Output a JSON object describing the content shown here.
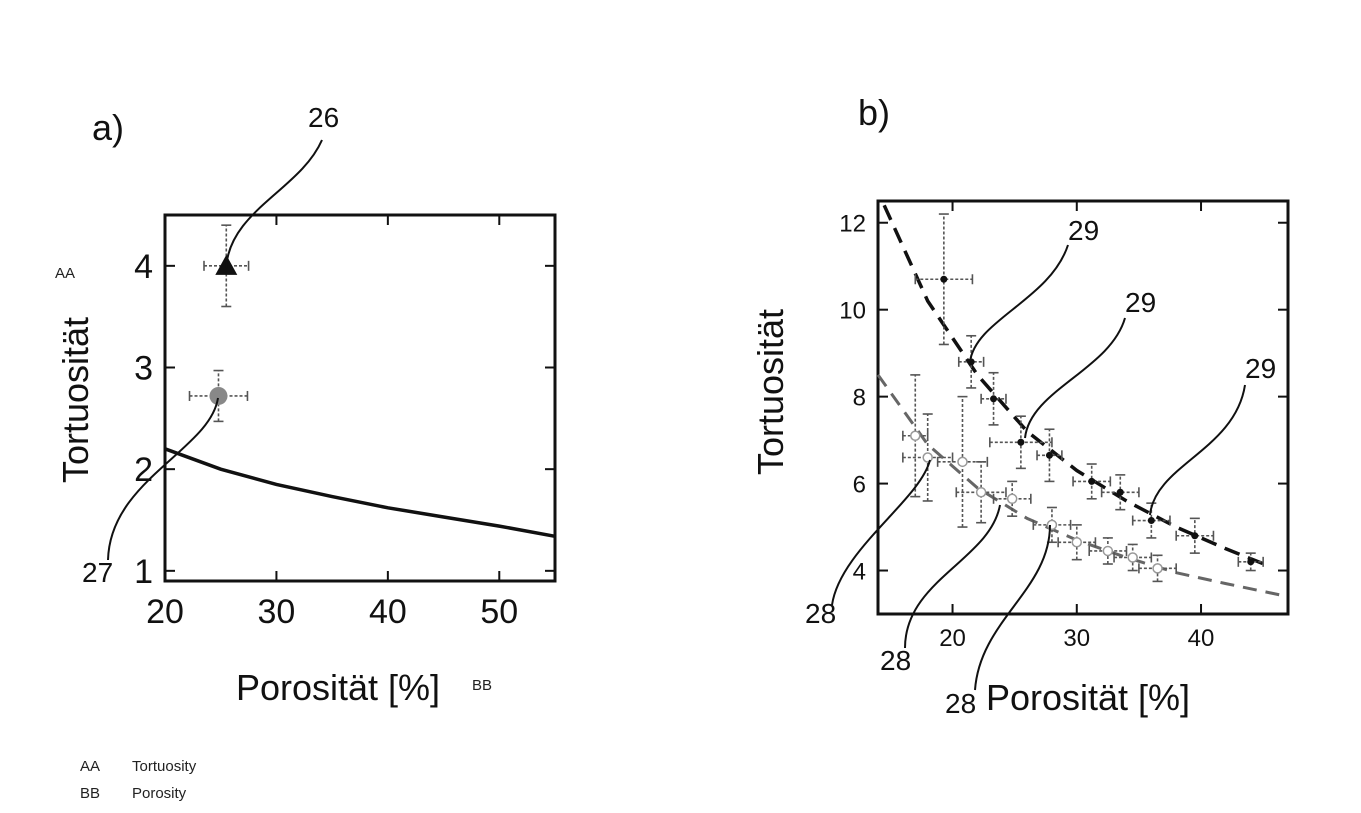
{
  "labels": {
    "panel_a": "a)",
    "panel_b": "b)",
    "aa_marker": "AA",
    "bb_marker": "BB",
    "legend": [
      {
        "key": "AA",
        "text": "Tortuosity"
      },
      {
        "key": "BB",
        "text": "Porosity"
      }
    ],
    "callouts_a": [
      "26",
      "27"
    ],
    "callouts_b": [
      "29",
      "29",
      "29",
      "28",
      "28",
      "28"
    ]
  },
  "chart_data": [
    {
      "type": "scatter",
      "panel": "a)",
      "xlabel": "Porosität [%]",
      "ylabel": "Tortuosität",
      "xlim": [
        20,
        55
      ],
      "ylim": [
        0.9,
        4.5
      ],
      "xticks": [
        20,
        30,
        40,
        50
      ],
      "yticks": [
        1,
        2,
        3,
        4
      ],
      "grid": false,
      "series": [
        {
          "marker": "triangle",
          "color": "#111111",
          "points": [
            {
              "x": 25.5,
              "y": 4.0,
              "xerr": 2.0,
              "yerr": 0.4
            }
          ]
        },
        {
          "marker": "circle",
          "color": "#888888",
          "points": [
            {
              "x": 24.8,
              "y": 2.72,
              "xerr": 2.6,
              "yerr": 0.25
            }
          ]
        },
        {
          "marker": "line",
          "color": "#111111",
          "points": [
            {
              "x": 20,
              "y": 2.2
            },
            {
              "x": 25,
              "y": 2.0
            },
            {
              "x": 30,
              "y": 1.85
            },
            {
              "x": 35,
              "y": 1.73
            },
            {
              "x": 40,
              "y": 1.62
            },
            {
              "x": 45,
              "y": 1.53
            },
            {
              "x": 50,
              "y": 1.44
            },
            {
              "x": 55,
              "y": 1.34
            }
          ]
        }
      ]
    },
    {
      "type": "scatter",
      "panel": "b)",
      "xlabel": "Porosität [%]",
      "ylabel": "Tortuosität",
      "xlim": [
        14,
        47
      ],
      "ylim": [
        3,
        12.5
      ],
      "xticks": [
        20,
        30,
        40
      ],
      "yticks": [
        4,
        6,
        8,
        10,
        12
      ],
      "grid": false,
      "series": [
        {
          "marker": "dot",
          "color": "#111111",
          "points": [
            {
              "x": 19.3,
              "y": 10.7,
              "xerr": 2.3,
              "yerr": 1.5
            },
            {
              "x": 21.5,
              "y": 8.8,
              "xerr": 1.0,
              "yerr": 0.6
            },
            {
              "x": 23.3,
              "y": 7.95,
              "xerr": 1.0,
              "yerr": 0.6
            },
            {
              "x": 25.5,
              "y": 6.95,
              "xerr": 2.5,
              "yerr": 0.6
            },
            {
              "x": 27.8,
              "y": 6.65,
              "xerr": 1.0,
              "yerr": 0.6
            },
            {
              "x": 31.2,
              "y": 6.05,
              "xerr": 1.5,
              "yerr": 0.4
            },
            {
              "x": 33.5,
              "y": 5.8,
              "xerr": 1.5,
              "yerr": 0.4
            },
            {
              "x": 36.0,
              "y": 5.15,
              "xerr": 1.5,
              "yerr": 0.4
            },
            {
              "x": 39.5,
              "y": 4.8,
              "xerr": 1.5,
              "yerr": 0.4
            },
            {
              "x": 44.0,
              "y": 4.2,
              "xerr": 1.0,
              "yerr": 0.2
            }
          ]
        },
        {
          "marker": "circle",
          "color": "#999999",
          "points": [
            {
              "x": 17.0,
              "y": 7.1,
              "xerr": 1.0,
              "yerr": 1.4
            },
            {
              "x": 18.0,
              "y": 6.6,
              "xerr": 2.0,
              "yerr": 1.0
            },
            {
              "x": 20.8,
              "y": 6.5,
              "xerr": 2.0,
              "yerr": 1.5
            },
            {
              "x": 22.3,
              "y": 5.8,
              "xerr": 2.0,
              "yerr": 0.7
            },
            {
              "x": 24.8,
              "y": 5.65,
              "xerr": 1.5,
              "yerr": 0.4
            },
            {
              "x": 28.0,
              "y": 5.05,
              "xerr": 1.5,
              "yerr": 0.4
            },
            {
              "x": 30.0,
              "y": 4.65,
              "xerr": 1.5,
              "yerr": 0.4
            },
            {
              "x": 32.5,
              "y": 4.45,
              "xerr": 1.5,
              "yerr": 0.3
            },
            {
              "x": 34.5,
              "y": 4.3,
              "xerr": 1.5,
              "yerr": 0.3
            },
            {
              "x": 36.5,
              "y": 4.05,
              "xerr": 1.5,
              "yerr": 0.3
            }
          ]
        },
        {
          "marker": "dashed-line",
          "color": "#111111",
          "points": [
            {
              "x": 14.5,
              "y": 12.4
            },
            {
              "x": 18,
              "y": 10.2
            },
            {
              "x": 22,
              "y": 8.5
            },
            {
              "x": 26,
              "y": 7.2
            },
            {
              "x": 30,
              "y": 6.3
            },
            {
              "x": 34,
              "y": 5.6
            },
            {
              "x": 38,
              "y": 5.0
            },
            {
              "x": 42,
              "y": 4.5
            },
            {
              "x": 45.5,
              "y": 4.1
            }
          ]
        },
        {
          "marker": "dashed-line",
          "color": "#666666",
          "points": [
            {
              "x": 14,
              "y": 8.5
            },
            {
              "x": 18,
              "y": 6.9
            },
            {
              "x": 22,
              "y": 5.9
            },
            {
              "x": 26,
              "y": 5.2
            },
            {
              "x": 30,
              "y": 4.7
            },
            {
              "x": 34,
              "y": 4.3
            },
            {
              "x": 38,
              "y": 3.95
            },
            {
              "x": 42,
              "y": 3.7
            },
            {
              "x": 47,
              "y": 3.4
            }
          ]
        }
      ]
    }
  ]
}
